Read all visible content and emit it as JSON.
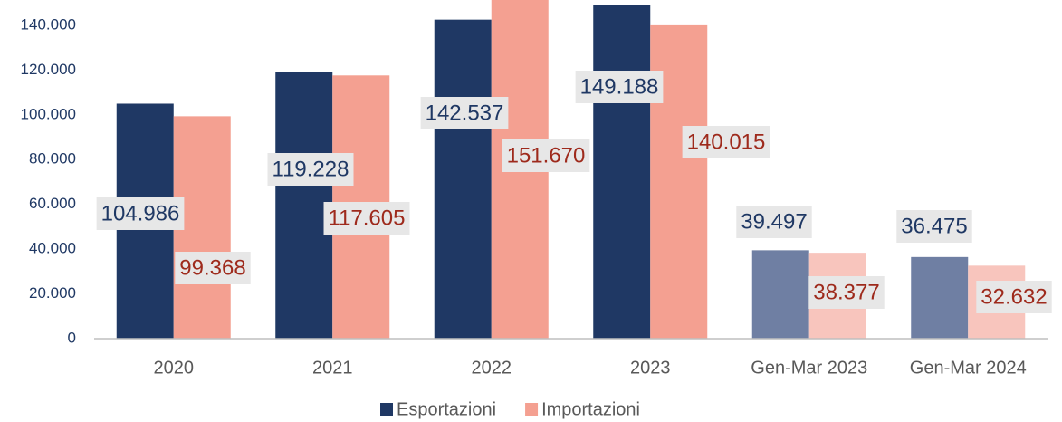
{
  "chart_data": {
    "type": "bar",
    "categories": [
      "2020",
      "2021",
      "2022",
      "2023",
      "Gen-Mar 2023",
      "Gen-Mar 2024"
    ],
    "series": [
      {
        "name": "Esportazioni",
        "color": "#1f3864",
        "colors": [
          "#1f3864",
          "#1f3864",
          "#1f3864",
          "#1f3864",
          "#6f7fa3",
          "#6f7fa3"
        ],
        "values": [
          104986,
          119228,
          142537,
          149188,
          39497,
          36475
        ],
        "value_labels": [
          "104.986",
          "119.228",
          "142.537",
          "149.188",
          "39.497",
          "36.475"
        ]
      },
      {
        "name": "Importazioni",
        "color": "#f4a091",
        "colors": [
          "#f4a091",
          "#f4a091",
          "#f4a091",
          "#f4a091",
          "#f8c5bd",
          "#f8c5bd"
        ],
        "values": [
          99368,
          117605,
          151670,
          140015,
          38377,
          32632
        ],
        "value_labels": [
          "99.368",
          "117.605",
          "151.670",
          "140.015",
          "38.377",
          "32.632"
        ]
      }
    ],
    "ylim": [
      0,
      151300
    ],
    "yticks": [
      0,
      {
        "value": 20000,
        "label": "20.000"
      },
      {
        "value": 40000,
        "label": "40.000"
      },
      {
        "value": 60000,
        "label": "60.000"
      },
      {
        "value": 80000,
        "label": "80.000"
      },
      {
        "value": 100000,
        "label": "100.000"
      },
      {
        "value": 120000,
        "label": "120.000"
      },
      {
        "value": 140000,
        "label": "140.000"
      }
    ],
    "grid": false,
    "legend": "bottom"
  }
}
